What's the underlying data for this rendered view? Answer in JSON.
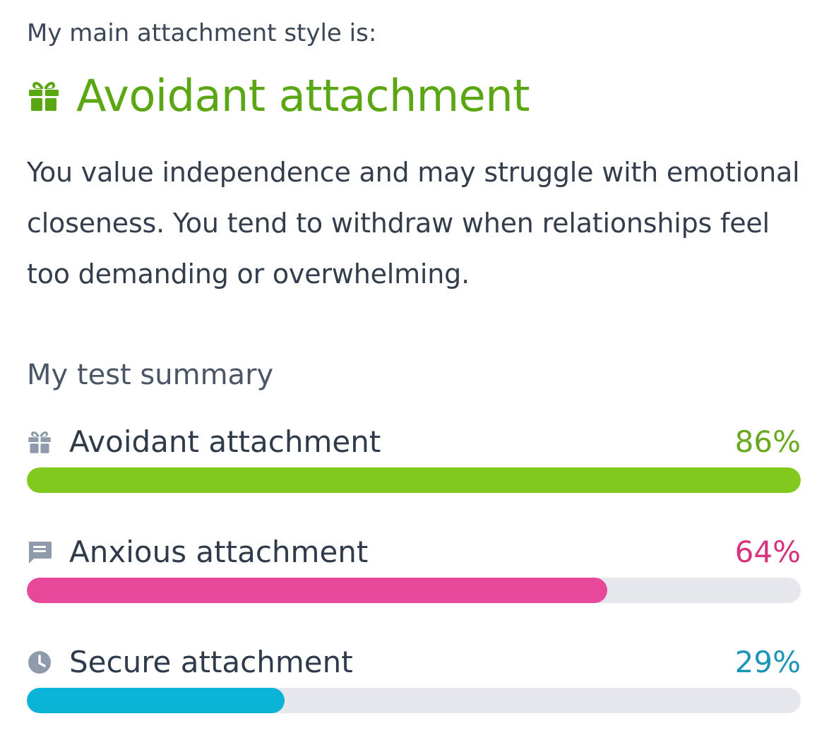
{
  "header": {
    "intro": "My main attachment style is:",
    "main_style": "Avoidant attachment",
    "main_icon": "gift-icon",
    "main_color": "#5aa613",
    "description": "You value independence and may struggle with emotional closeness. You tend to withdraw when relationships feel too demanding or overwhelming."
  },
  "summary": {
    "title": "My test summary",
    "items": [
      {
        "label": "Avoidant attachment",
        "percent_label": "86%",
        "level": 1.0,
        "icon": "gift-icon",
        "color": "#82c91e"
      },
      {
        "label": "Anxious attachment",
        "percent_label": "64%",
        "level": 0.75,
        "icon": "chat-icon",
        "color": "#e8489a"
      },
      {
        "label": "Secure attachment",
        "percent_label": "29%",
        "level": 0.333,
        "icon": "clock-icon",
        "color": "#0ab4d6"
      }
    ],
    "track_color": "#e6e7ec",
    "pct_colors": [
      "#6aa81e",
      "#d6337f",
      "#1a96b8"
    ]
  }
}
